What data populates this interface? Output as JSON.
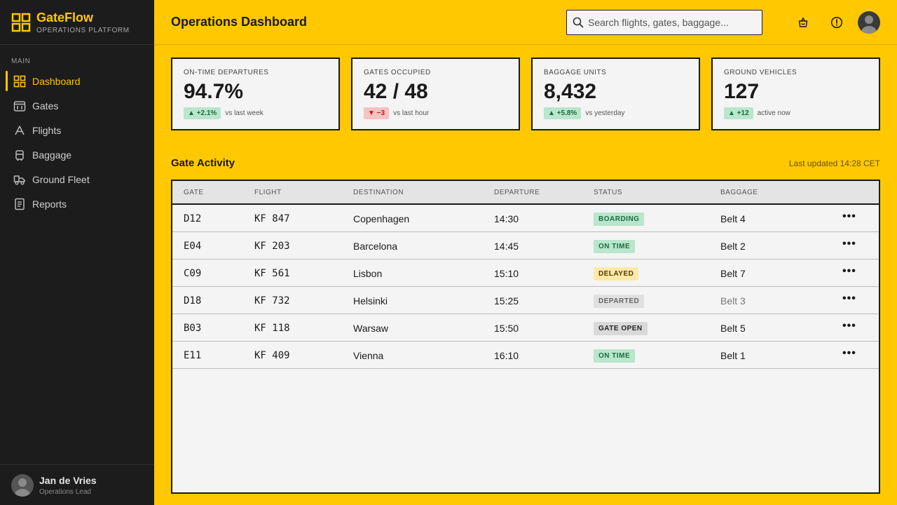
{
  "brand": {
    "name": "GateFlow",
    "subtitle": "OPERATIONS PLATFORM",
    "accent": "#ffc800"
  },
  "sidebar": {
    "section": "MAIN",
    "items": [
      {
        "label": "Dashboard",
        "icon": "grid-icon",
        "active": true
      },
      {
        "label": "Gates",
        "icon": "gate-icon"
      },
      {
        "label": "Flights",
        "icon": "plane-icon"
      },
      {
        "label": "Baggage",
        "icon": "baggage-icon"
      },
      {
        "label": "Ground Fleet",
        "icon": "truck-icon"
      },
      {
        "label": "Reports",
        "icon": "report-icon"
      }
    ],
    "user": {
      "name": "Jan de Vries",
      "role": "Operations Lead"
    }
  },
  "header": {
    "title": "Operations Dashboard",
    "search_placeholder": "Search flights, gates, baggage..."
  },
  "kpis": [
    {
      "label": "ON-TIME DEPARTURES",
      "value": "94.7%",
      "delta": "▲ +2.1%",
      "trend": "up",
      "note": "vs last week"
    },
    {
      "label": "GATES OCCUPIED",
      "value": "42 / 48",
      "delta": "▼ −3",
      "trend": "down",
      "note": "vs last hour"
    },
    {
      "label": "BAGGAGE UNITS",
      "value": "8,432",
      "delta": "▲ +5.8%",
      "trend": "up",
      "note": "vs yesterday"
    },
    {
      "label": "GROUND VEHICLES",
      "value": "127",
      "delta": "▲ +12",
      "trend": "up",
      "note": "active now"
    }
  ],
  "activity": {
    "title": "Gate Activity",
    "updated": "Last updated 14:28 CET",
    "columns": [
      "GATE",
      "FLIGHT",
      "DESTINATION",
      "DEPARTURE",
      "STATUS",
      "BAGGAGE"
    ],
    "more_label": "•••",
    "rows": [
      {
        "gate": "D12",
        "flight": "KF 847",
        "destination": "Copenhagen",
        "departure": "14:30",
        "status": "BOARDING",
        "baggage": "Belt 4"
      },
      {
        "gate": "E04",
        "flight": "KF 203",
        "destination": "Barcelona",
        "departure": "14:45",
        "status": "ON TIME",
        "baggage": "Belt 2"
      },
      {
        "gate": "C09",
        "flight": "KF 561",
        "destination": "Lisbon",
        "departure": "15:10",
        "status": "DELAYED",
        "baggage": "Belt 7"
      },
      {
        "gate": "D18",
        "flight": "KF 732",
        "destination": "Helsinki",
        "departure": "15:25",
        "status": "DEPARTED",
        "baggage": "Belt 3"
      },
      {
        "gate": "B03",
        "flight": "KF 118",
        "destination": "Warsaw",
        "departure": "15:50",
        "status": "GATE OPEN",
        "baggage": "Belt 5"
      },
      {
        "gate": "E11",
        "flight": "KF 409",
        "destination": "Vienna",
        "departure": "16:10",
        "status": "ON TIME",
        "baggage": "Belt 1"
      }
    ]
  }
}
